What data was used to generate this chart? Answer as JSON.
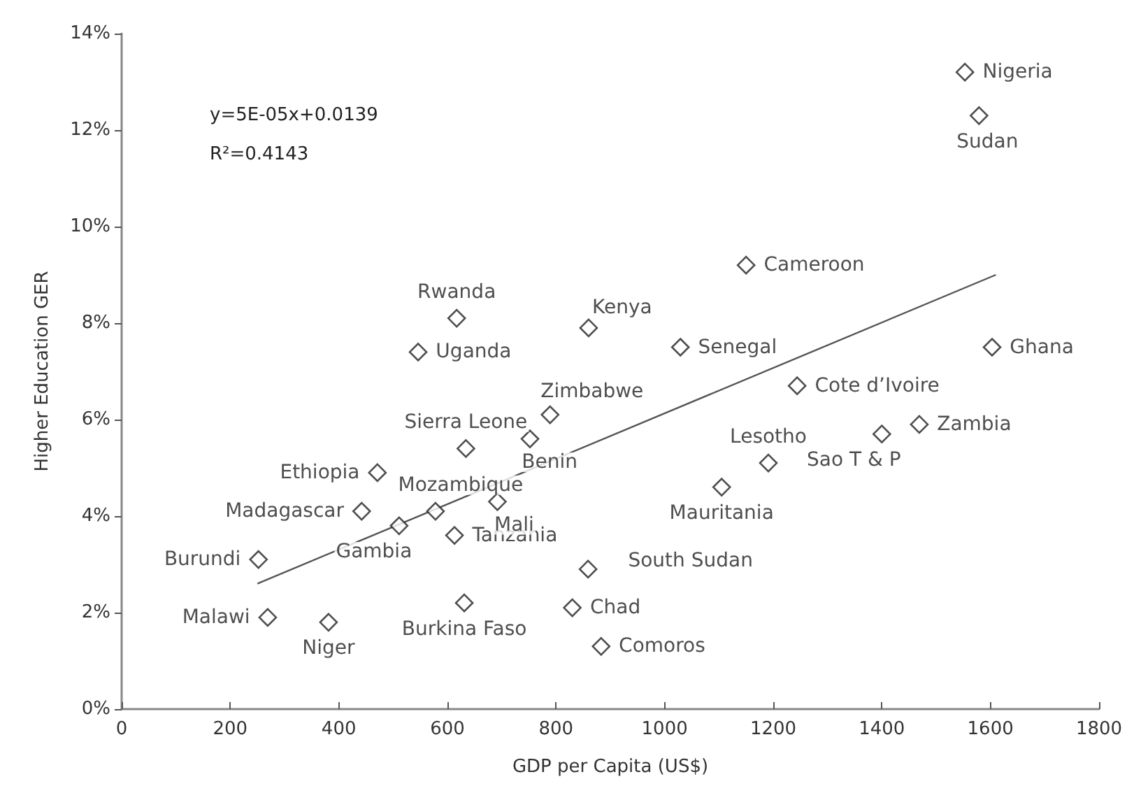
{
  "chart_data": {
    "type": "scatter",
    "xlabel": "GDP per Capita (US$)",
    "ylabel": "Higher Education GER",
    "xlim": [
      0,
      1800
    ],
    "xticks": [
      0,
      200,
      400,
      600,
      800,
      1000,
      1200,
      1400,
      1600,
      1800
    ],
    "ylim": [
      0,
      14
    ],
    "yticks": [
      {
        "value": 0,
        "label": "0%"
      },
      {
        "value": 2,
        "label": "2%"
      },
      {
        "value": 4,
        "label": "4%"
      },
      {
        "value": 6,
        "label": "6%"
      },
      {
        "value": 8,
        "label": "8%"
      },
      {
        "value": 10,
        "label": "10%"
      },
      {
        "value": 12,
        "label": "12%"
      },
      {
        "value": 14,
        "label": "14%"
      }
    ],
    "annotations": [
      "y=5E-05x+0.0139",
      "R²=0.4143"
    ],
    "series": [
      {
        "marker": "diamond",
        "color": "#222222",
        "x": [
          252,
          269,
          381,
          471,
          442,
          511,
          578,
          613,
          692,
          634,
          752,
          789,
          631,
          830,
          859,
          883,
          617,
          546,
          860,
          1553,
          1579,
          1150,
          1029,
          1603,
          1244,
          1469,
          1400,
          1191,
          1105
        ],
        "values": [
          3.1,
          1.9,
          1.8,
          4.9,
          4.1,
          3.8,
          4.1,
          3.6,
          4.3,
          5.4,
          5.6,
          6.1,
          2.2,
          2.1,
          2.9,
          1.3,
          8.1,
          7.4,
          7.9,
          13.2,
          12.3,
          9.2,
          7.5,
          7.5,
          6.7,
          5.9,
          5.7,
          5.1,
          4.6
        ],
        "value_labels": [
          "Burundi",
          "Malawi",
          "Niger",
          "Ethiopia",
          "Madagascar",
          "Gambia",
          "Mozambique",
          "Tanzania",
          "Mali",
          "Sierra Leone",
          "Benin",
          "Zimbabwe",
          "Burkina Faso",
          "Chad",
          "South Sudan",
          "Comoros",
          "Rwanda",
          "Uganda",
          "Kenya",
          "Nigeria",
          "Sudan",
          "Cameroon",
          "Senegal",
          "Ghana",
          "Cote d’Ivoire",
          "Zambia",
          "Sao T & P",
          "Lesotho",
          "Mauritania"
        ]
      },
      {
        "type": "line",
        "marker": "none",
        "color": "#555555",
        "x": [
          250,
          1610
        ],
        "values": [
          2.6,
          9.0
        ]
      }
    ]
  }
}
